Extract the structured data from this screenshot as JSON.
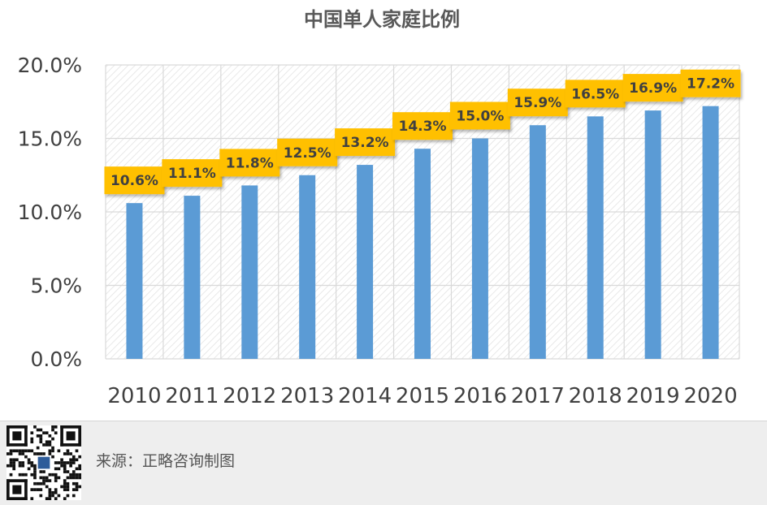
{
  "footer": {
    "source_text": "来源：正略咨询制图"
  },
  "chart_data": {
    "type": "bar",
    "title": "中国单人家庭比例",
    "xlabel": "",
    "ylabel": "",
    "categories": [
      "2010",
      "2011",
      "2012",
      "2013",
      "2014",
      "2015",
      "2016",
      "2017",
      "2018",
      "2019",
      "2020"
    ],
    "values": [
      10.6,
      11.1,
      11.8,
      12.5,
      13.2,
      14.3,
      15.0,
      15.9,
      16.5,
      16.9,
      17.2
    ],
    "value_labels": [
      "10.6%",
      "11.1%",
      "11.8%",
      "12.5%",
      "13.2%",
      "14.3%",
      "15.0%",
      "15.9%",
      "16.5%",
      "16.9%",
      "17.2%"
    ],
    "ylim": [
      0,
      20
    ],
    "yticks": [
      0,
      5,
      10,
      15,
      20
    ],
    "ytick_labels": [
      "0.0%",
      "5.0%",
      "10.0%",
      "15.0%",
      "20.0%"
    ],
    "grid": true,
    "legend": "none",
    "colors": {
      "bar": "#5b9bd5",
      "label_box": "#ffc000",
      "grid": "#d9d9d9",
      "hatch": "#e3e3e3"
    }
  }
}
